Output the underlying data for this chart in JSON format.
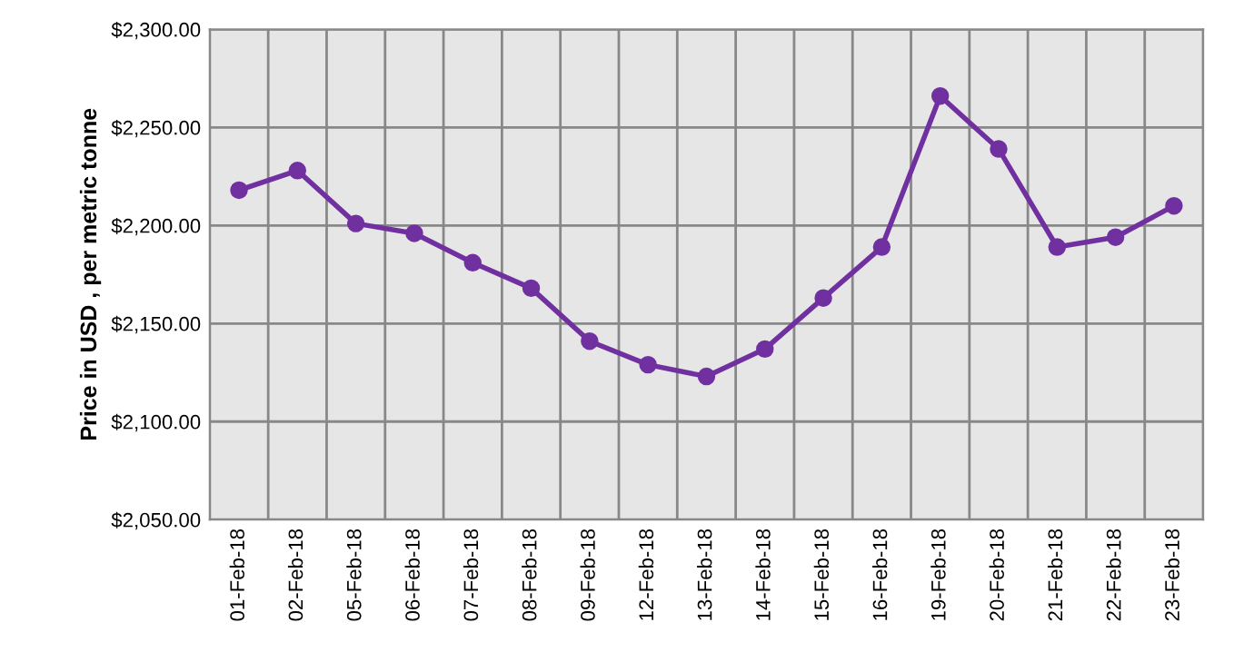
{
  "chart_data": {
    "type": "line",
    "ylabel": "Price in USD , per metric tonne",
    "categories": [
      "01-Feb-18",
      "02-Feb-18",
      "05-Feb-18",
      "06-Feb-18",
      "07-Feb-18",
      "08-Feb-18",
      "09-Feb-18",
      "12-Feb-18",
      "13-Feb-18",
      "14-Feb-18",
      "15-Feb-18",
      "16-Feb-18",
      "19-Feb-18",
      "20-Feb-18",
      "21-Feb-18",
      "22-Feb-18",
      "23-Feb-18"
    ],
    "series": [
      {
        "color": "#7030a0",
        "values": [
          2218,
          2228,
          2201,
          2196,
          2181,
          2168,
          2141,
          2129,
          2123,
          2137,
          2163,
          2189,
          2266,
          2239,
          2189,
          2194,
          2210
        ]
      }
    ],
    "ylim": [
      2050,
      2300
    ],
    "yticks": [
      {
        "value": 2050,
        "label": "$2,050.00"
      },
      {
        "value": 2100,
        "label": "$2,100.00"
      },
      {
        "value": 2150,
        "label": "$2,150.00"
      },
      {
        "value": 2200,
        "label": "$2,200.00"
      },
      {
        "value": 2250,
        "label": "$2,250.00"
      },
      {
        "value": 2300,
        "label": "$2,300.00"
      }
    ],
    "grid": true,
    "marker": "circle",
    "line_style": "solid"
  }
}
